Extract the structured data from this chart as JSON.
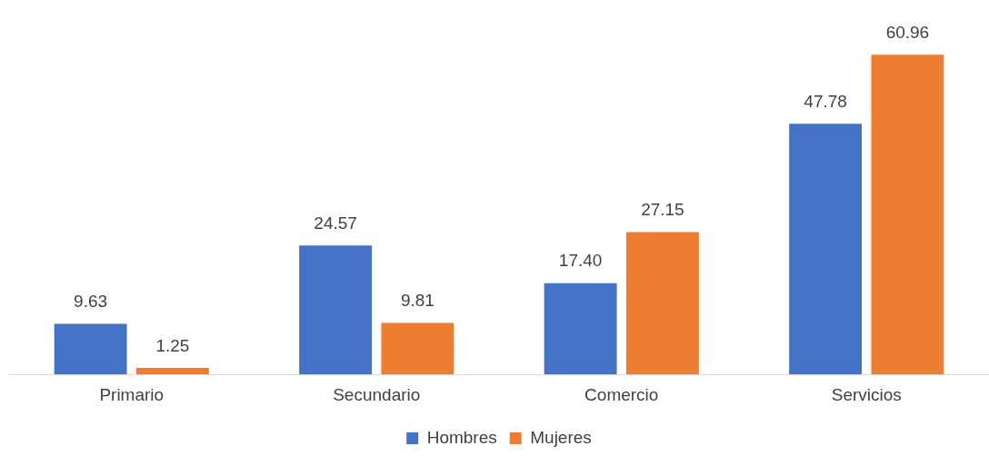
{
  "chart_data": {
    "type": "bar",
    "categories": [
      "Primario",
      "Secundario",
      "Comercio",
      "Servicios"
    ],
    "series": [
      {
        "name": "Hombres",
        "color": "#4472c4",
        "values": [
          9.63,
          24.57,
          17.4,
          47.78
        ],
        "value_labels": [
          "9.63",
          "24.57",
          "17.40",
          "47.78"
        ]
      },
      {
        "name": "Mujeres",
        "color": "#ed7d31",
        "values": [
          1.25,
          9.81,
          27.15,
          60.96
        ],
        "value_labels": [
          "1.25",
          "9.81",
          "27.15",
          "60.96"
        ]
      }
    ],
    "tick_labels": "x",
    "grid": false,
    "legend": "bottom"
  }
}
